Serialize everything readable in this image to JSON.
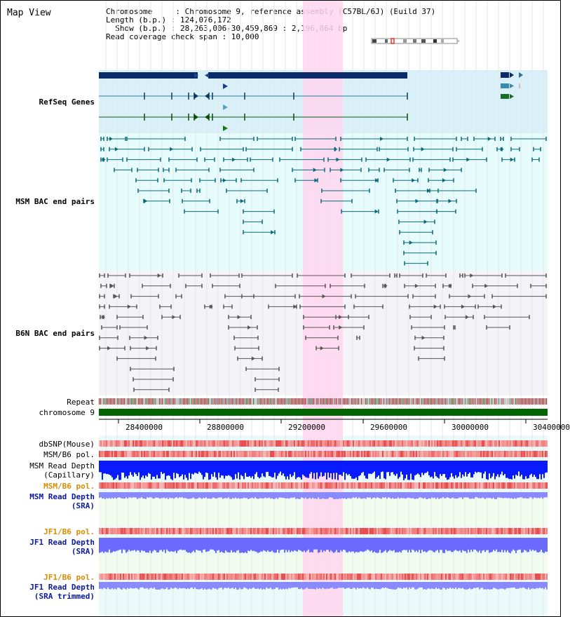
{
  "title": "Map View",
  "header": {
    "line1": "Chromosome     : Chromosome 9, reference assembly (C57BL/6J) (Build 37)",
    "line2": "Length (b.p.) : 124,076,172",
    "line3": "  Show (b.p.) : 28,263,006-30,459,869 : 2,196,864 bp",
    "line4": "Read coverage check span : 10,000"
  },
  "tracks": {
    "refseq": "RefSeq Genes",
    "msm_bac": "MSM BAC end pairs",
    "b6n_bac": "B6N BAC end pairs",
    "repeat": "Repeat",
    "chromosome": "chromosome 9",
    "dbsnp": "dbSNP(Mouse)",
    "msm_b6_pol_1": "MSM/B6 pol.",
    "msm_depth_cap_1": "MSM Read Depth",
    "msm_depth_cap_2": "(Capillary)",
    "msm_b6_pol_2": "MSM/B6 pol.",
    "msm_depth_sra_1": "MSM Read Depth",
    "msm_depth_sra_2": "(SRA)",
    "jf1_b6_pol_1": "JF1/B6 pol.",
    "jf1_depth_sra_1": "JF1 Read Depth",
    "jf1_depth_sra_2": "(SRA)",
    "jf1_b6_pol_2": "JF1/B6 pol.",
    "jf1_depth_trim_1": "JF1 Read Depth",
    "jf1_depth_trim_2": "(SRA trimmed)"
  },
  "axis": {
    "ticks": [
      "28400000",
      "28800000",
      "29200000",
      "29600000",
      "30000000",
      "30400000"
    ]
  },
  "colors": {
    "refseq_bg": "#d9f0f9",
    "msm_bg": "#e6fbfb",
    "b6n_bg": "#f4f4f8",
    "highlight": "#ffd6ee",
    "refseq_label": "#0a1a9a",
    "msm_label": "#006b80",
    "b6n_label": "#555555",
    "pol_label": "#d98c00",
    "depth_label": "#0a1a9a"
  }
}
